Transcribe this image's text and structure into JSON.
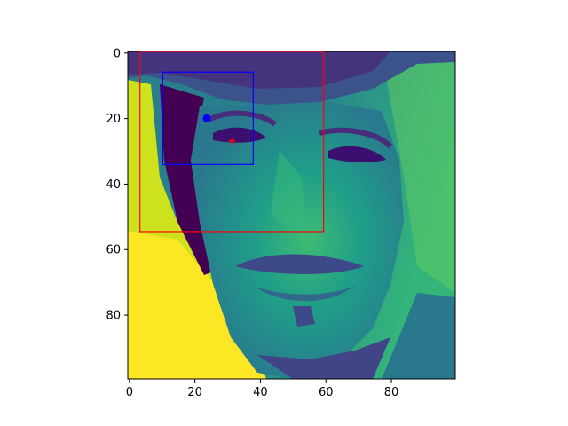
{
  "figure": {
    "xticks": [
      {
        "value": 0,
        "label": "0"
      },
      {
        "value": 20,
        "label": "20"
      },
      {
        "value": 40,
        "label": "40"
      },
      {
        "value": 60,
        "label": "60"
      },
      {
        "value": 80,
        "label": "80"
      }
    ],
    "yticks": [
      {
        "value": 0,
        "label": "0"
      },
      {
        "value": 20,
        "label": "20"
      },
      {
        "value": 40,
        "label": "40"
      },
      {
        "value": 60,
        "label": "60"
      },
      {
        "value": 80,
        "label": "80"
      }
    ],
    "image_extent": {
      "x": [
        -0.5,
        99.5
      ],
      "y": [
        -0.5,
        99.5
      ]
    },
    "colormap": "viridis",
    "boxes": [
      {
        "name": "red-box",
        "color": "#ff0000",
        "x0": 3.2,
        "y0": -0.5,
        "x1": 59.3,
        "y1": 54.5
      },
      {
        "name": "blue-box",
        "color": "#0000ff",
        "x0": 10.2,
        "y0": 5.8,
        "x1": 37.8,
        "y1": 34.0
      }
    ],
    "markers": [
      {
        "name": "blue-dot",
        "shape": "circle",
        "color": "#0000ff",
        "x": 23.6,
        "y": 19.9
      },
      {
        "name": "red-plus",
        "shape": "plus",
        "color": "#ff0000",
        "x": 31.3,
        "y": 26.8
      }
    ]
  }
}
